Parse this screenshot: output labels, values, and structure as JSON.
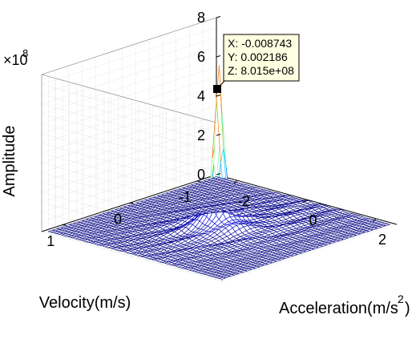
{
  "chart_data": {
    "type": "surface",
    "title": "",
    "xlabel": "Acceleration(m/s",
    "xlabel_sup": "2",
    "xlabel_close": ")",
    "ylabel": "Velocity(m/s)",
    "zlabel": "Amplitude",
    "xlim": [
      -2.6,
      2.6
    ],
    "ylim": [
      -1.3,
      1.3
    ],
    "zlim": [
      0,
      800000000
    ],
    "xticks": [
      "-2",
      "0",
      "2"
    ],
    "yticks": [
      "-1",
      "0",
      "1"
    ],
    "zticks": [
      "0",
      "2",
      "4",
      "6",
      "8"
    ],
    "z_exponent_prefix": "×10",
    "z_exponent_power": "8",
    "grid": true,
    "colormap": "jet",
    "peak": {
      "x": -0.008743,
      "y": 0.002186,
      "z": 801500000
    },
    "datatip": {
      "x_text": "X: -0.008743",
      "y_text": "Y: 0.002186",
      "z_text": "Z: 8.015e+08"
    },
    "colors": {
      "mesh_low": "#00008b",
      "mesh_high": "#8b0000",
      "grid": "#c8c8c8",
      "datatip_bg": "#ffffe1"
    }
  }
}
